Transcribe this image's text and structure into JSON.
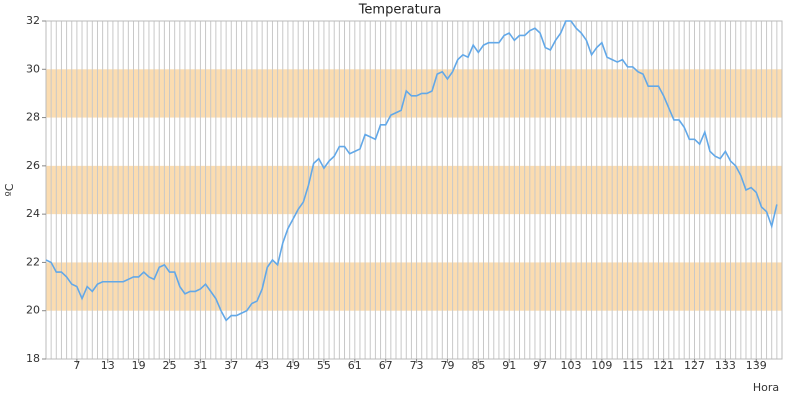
{
  "chart_data": {
    "type": "line",
    "title": "Temperatura",
    "x_label": "Hora",
    "y_label": "ºC",
    "x": [
      1,
      2,
      3,
      4,
      5,
      6,
      7,
      8,
      9,
      10,
      11,
      12,
      13,
      14,
      15,
      16,
      17,
      18,
      19,
      20,
      21,
      22,
      23,
      24,
      25,
      26,
      27,
      28,
      29,
      30,
      31,
      32,
      33,
      34,
      35,
      36,
      37,
      38,
      39,
      40,
      41,
      42,
      43,
      44,
      45,
      46,
      47,
      48,
      49,
      50,
      51,
      52,
      53,
      54,
      55,
      56,
      57,
      58,
      59,
      60,
      61,
      62,
      63,
      64,
      65,
      66,
      67,
      68,
      69,
      70,
      71,
      72,
      73,
      74,
      75,
      76,
      77,
      78,
      79,
      80,
      81,
      82,
      83,
      84,
      85,
      86,
      87,
      88,
      89,
      90,
      91,
      92,
      93,
      94,
      95,
      96,
      97,
      98,
      99,
      100,
      101,
      102,
      103,
      104,
      105,
      106,
      107,
      108,
      109,
      110,
      111,
      112,
      113,
      114,
      115,
      116,
      117,
      118,
      119,
      120,
      121,
      122,
      123,
      124,
      125,
      126,
      127,
      128,
      129,
      130,
      131,
      132,
      133,
      134,
      135,
      136,
      137,
      138,
      139,
      140,
      141,
      142,
      143
    ],
    "series": [
      {
        "name": "Temperatura",
        "color": "#62a8e8",
        "values": [
          22.1,
          22.0,
          21.6,
          21.6,
          21.4,
          21.1,
          21.0,
          20.5,
          21.0,
          20.8,
          21.1,
          21.2,
          21.2,
          21.2,
          21.2,
          21.2,
          21.3,
          21.4,
          21.4,
          21.6,
          21.4,
          21.3,
          21.8,
          21.9,
          21.6,
          21.6,
          21.0,
          20.7,
          20.8,
          20.8,
          20.9,
          21.1,
          20.8,
          20.5,
          20.0,
          19.6,
          19.8,
          19.8,
          19.9,
          20.0,
          20.3,
          20.4,
          20.9,
          21.8,
          22.1,
          21.9,
          22.8,
          23.4,
          23.8,
          24.2,
          24.5,
          25.2,
          26.1,
          26.3,
          25.9,
          26.2,
          26.4,
          26.8,
          26.8,
          26.5,
          26.6,
          26.7,
          27.3,
          27.2,
          27.1,
          27.7,
          27.7,
          28.1,
          28.2,
          28.3,
          29.1,
          28.9,
          28.9,
          29.0,
          29.0,
          29.1,
          29.8,
          29.9,
          29.6,
          29.9,
          30.4,
          30.6,
          30.5,
          31.0,
          30.7,
          31.0,
          31.1,
          31.1,
          31.1,
          31.4,
          31.5,
          31.2,
          31.4,
          31.4,
          31.6,
          31.7,
          31.5,
          30.9,
          30.8,
          31.2,
          31.5,
          32.0,
          32.0,
          31.7,
          31.5,
          31.2,
          30.6,
          30.9,
          31.1,
          30.5,
          30.4,
          30.3,
          30.4,
          30.1,
          30.1,
          29.9,
          29.8,
          29.3,
          29.3,
          29.3,
          28.9,
          28.4,
          27.9,
          27.9,
          27.6,
          27.1,
          27.1,
          26.9,
          27.4,
          26.6,
          26.4,
          26.3,
          26.6,
          26.2,
          26.0,
          25.6,
          25.0,
          25.1,
          24.9,
          24.3,
          24.1,
          23.5,
          24.4
        ]
      }
    ],
    "xlim": [
      1,
      144
    ],
    "xticks": [
      7,
      13,
      19,
      25,
      31,
      37,
      43,
      49,
      55,
      61,
      67,
      73,
      79,
      85,
      91,
      97,
      103,
      109,
      115,
      121,
      127,
      133,
      139
    ],
    "ylim": [
      18,
      32
    ],
    "yticks": [
      18,
      20,
      22,
      24,
      26,
      28,
      30,
      32
    ],
    "bands": [
      [
        20,
        22
      ],
      [
        24,
        26
      ],
      [
        28,
        30
      ]
    ],
    "band_color": "#fbdcb0",
    "grid": true
  }
}
